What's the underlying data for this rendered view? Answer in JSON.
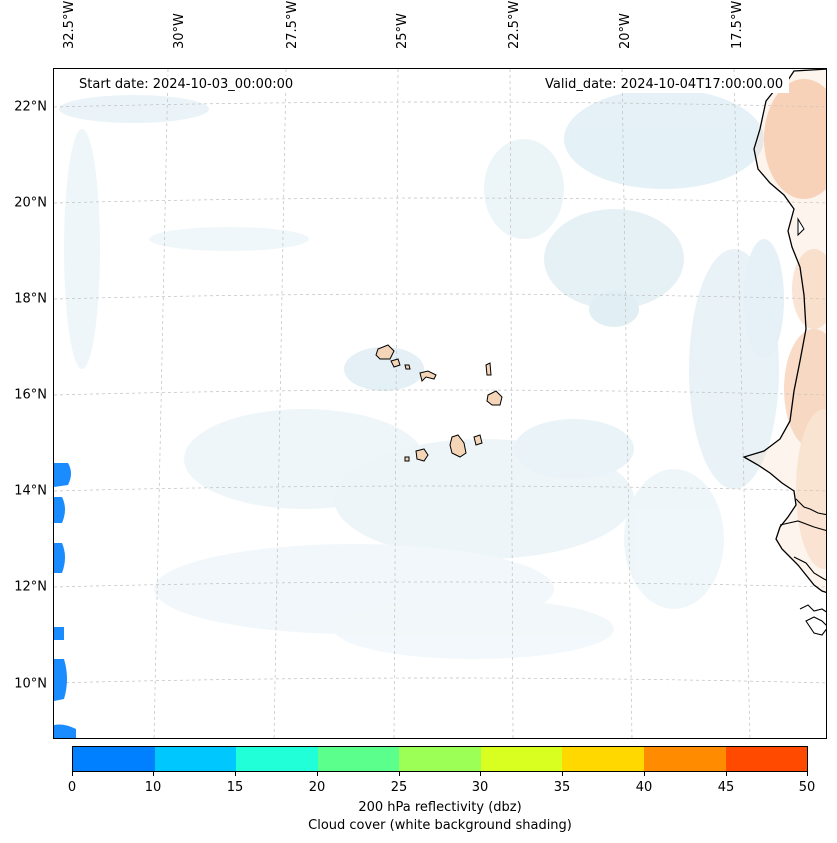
{
  "map": {
    "start_date": "Start date: 2024-10-03_00:00:00",
    "valid_date": "Valid_date: 2024-10-04T17:00:00.00",
    "lon_labels": [
      "32.5°W",
      "30°W",
      "27.5°W",
      "25°W",
      "22.5°W",
      "20°W",
      "17.5°W"
    ],
    "lat_labels": [
      "22°N",
      "20°N",
      "18°N",
      "16°N",
      "14°N",
      "12°N",
      "10°N"
    ],
    "features": [
      "Cape Verde islands",
      "West African coastline"
    ]
  },
  "colorbar": {
    "ticks": [
      "0",
      "10",
      "15",
      "20",
      "25",
      "30",
      "35",
      "40",
      "45",
      "50"
    ],
    "colors": [
      "#0080ff",
      "#00c8ff",
      "#20ffd8",
      "#5aff8c",
      "#9cff55",
      "#d8ff20",
      "#ffd800",
      "#ff8c00",
      "#ff4a00"
    ],
    "title_line1": "200 hPa reflectivity (dbz)",
    "title_line2": "Cloud cover (white background shading)"
  },
  "colors": {
    "cloud_shading": "#d4e9f1",
    "warm_shading": "#f6b88c",
    "reflectivity_low": "#1a8cff",
    "land": "#f5d5b8",
    "coastline": "#000000"
  }
}
